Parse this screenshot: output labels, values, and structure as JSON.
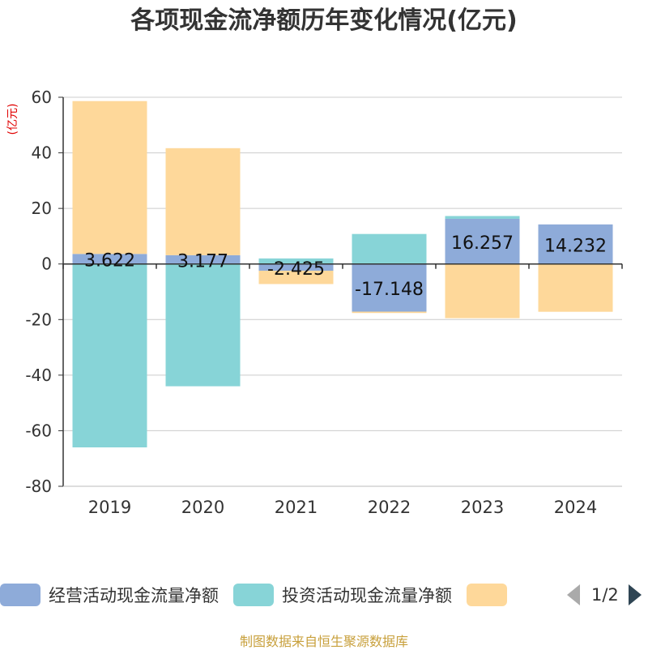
{
  "title": "各项现金流净额历年变化情况(亿元)",
  "source": "制图数据来自恒生聚源数据库",
  "chart_data": {
    "type": "bar",
    "stacked": true,
    "ylabel": "(亿元)",
    "ylim": [
      -80,
      60
    ],
    "yticks": [
      60,
      40,
      20,
      0,
      -20,
      -40,
      -60,
      -80
    ],
    "categories": [
      "2019",
      "2020",
      "2021",
      "2022",
      "2023",
      "2024"
    ],
    "series": [
      {
        "name": "经营活动现金流量净额",
        "color": "#8eabd9",
        "values": [
          3.622,
          3.177,
          -2.425,
          -17.148,
          16.257,
          14.232
        ]
      },
      {
        "name": "投资活动现金流量净额",
        "color": "#87d4d7",
        "values": [
          -66.0,
          -44.0,
          2.0,
          10.8,
          1.0,
          0.0
        ]
      },
      {
        "name": "",
        "color": "#fed89a",
        "values": [
          55.0,
          38.5,
          -4.8,
          -0.5,
          -19.5,
          -17.2
        ]
      }
    ],
    "data_labels": [
      "3.622",
      "3.177",
      "-2.425",
      "-17.148",
      "16.257",
      "14.232"
    ]
  },
  "legend": {
    "items": [
      {
        "label": "经营活动现金流量净额",
        "color": "#8eabd9"
      },
      {
        "label": "投资活动现金流量净额",
        "color": "#87d4d7"
      },
      {
        "label": "",
        "color": "#fed89a"
      }
    ],
    "page": "1/2"
  }
}
